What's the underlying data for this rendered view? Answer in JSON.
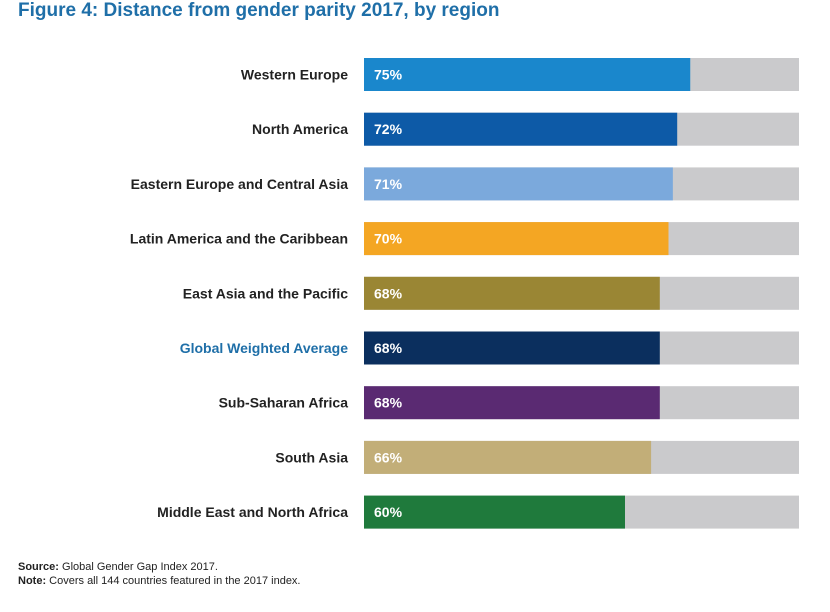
{
  "chart_data": {
    "type": "bar",
    "orientation": "horizontal",
    "title": "Figure 4: Distance from gender parity 2017, by region",
    "categories": [
      "Western Europe",
      "North America",
      "Eastern Europe and Central Asia",
      "Latin America and the Caribbean",
      "East Asia and the Pacific",
      "Global Weighted Average",
      "Sub-Saharan Africa",
      "South Asia",
      "Middle East and North Africa"
    ],
    "values": [
      75,
      72,
      71,
      70,
      68,
      68,
      68,
      66,
      60
    ],
    "value_labels": [
      "75%",
      "72%",
      "71%",
      "70%",
      "68%",
      "68%",
      "68%",
      "66%",
      "60%"
    ],
    "colors": [
      "#1a87cc",
      "#0d5aa7",
      "#7ba9dc",
      "#f4a623",
      "#9a8634",
      "#0b2f5e",
      "#5a2a72",
      "#c2ae78",
      "#1f7a3c"
    ],
    "background_color": "#cacacc",
    "highlight_category": "Global Weighted Average",
    "highlight_color": "#1f6fa8",
    "xlim": [
      0,
      100
    ],
    "grid": false,
    "legend": "none"
  },
  "footer": {
    "source_label": "Source:",
    "source_text": " Global Gender Gap Index 2017.",
    "note_label": "Note:",
    "note_text": " Covers all 144 countries featured in the 2017 index."
  }
}
